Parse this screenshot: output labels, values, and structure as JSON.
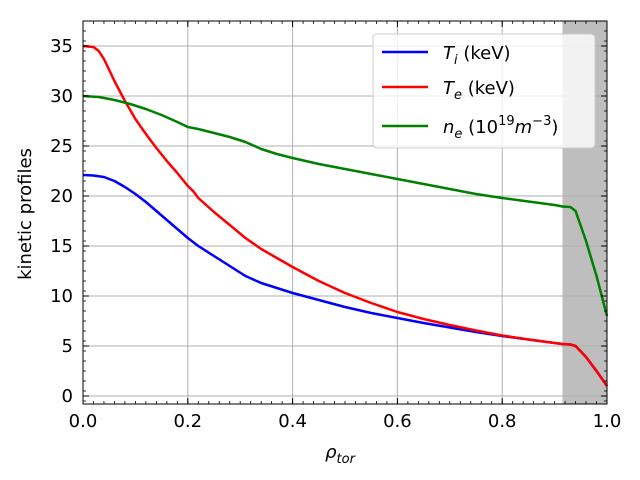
{
  "chart_data": {
    "type": "line",
    "title": "",
    "xlabel": "ρ",
    "xlabel_sub": "tor",
    "ylabel": "kinetic profiles",
    "xlim": [
      0.0,
      1.0
    ],
    "ylim": [
      -0.8,
      37.5
    ],
    "grid": true,
    "legend_position": "top-right",
    "x_ticks": [
      {
        "value": 0.0,
        "label": "0.0"
      },
      {
        "value": 0.2,
        "label": "0.2"
      },
      {
        "value": 0.4,
        "label": "0.4"
      },
      {
        "value": 0.6,
        "label": "0.6"
      },
      {
        "value": 0.8,
        "label": "0.8"
      },
      {
        "value": 1.0,
        "label": "1.0"
      }
    ],
    "y_ticks": [
      {
        "value": 0,
        "label": "0"
      },
      {
        "value": 5,
        "label": "5"
      },
      {
        "value": 10,
        "label": "10"
      },
      {
        "value": 15,
        "label": "15"
      },
      {
        "value": 20,
        "label": "20"
      },
      {
        "value": 25,
        "label": "25"
      },
      {
        "value": 30,
        "label": "30"
      },
      {
        "value": 35,
        "label": "35"
      }
    ],
    "shaded_region": {
      "x_start": 0.915,
      "x_end": 1.0,
      "color": "#bebebe"
    },
    "series": [
      {
        "name": "Ti (keV)",
        "legend_main": "T",
        "legend_sub": "i",
        "legend_suffix": " (keV)",
        "color": "#0000ff",
        "x": [
          0.0,
          0.02,
          0.04,
          0.06,
          0.08,
          0.1,
          0.12,
          0.14,
          0.16,
          0.18,
          0.2,
          0.22,
          0.25,
          0.28,
          0.31,
          0.34,
          0.37,
          0.4,
          0.45,
          0.5,
          0.55,
          0.6,
          0.65,
          0.7,
          0.75,
          0.8,
          0.85,
          0.9,
          0.915,
          0.93,
          0.94,
          0.96,
          0.98,
          1.0
        ],
        "values": [
          22.1,
          22.05,
          21.9,
          21.5,
          20.9,
          20.2,
          19.4,
          18.5,
          17.6,
          16.7,
          15.8,
          15.0,
          14.0,
          13.0,
          12.0,
          11.3,
          10.8,
          10.3,
          9.6,
          8.9,
          8.3,
          7.8,
          7.3,
          6.85,
          6.4,
          6.0,
          5.65,
          5.3,
          5.2,
          5.15,
          5.0,
          3.9,
          2.5,
          1.0
        ]
      },
      {
        "name": "Te (keV)",
        "legend_main": "T",
        "legend_sub": "e",
        "legend_suffix": " (keV)",
        "color": "#ff0000",
        "x": [
          0.0,
          0.02,
          0.03,
          0.04,
          0.05,
          0.06,
          0.08,
          0.1,
          0.12,
          0.14,
          0.16,
          0.18,
          0.2,
          0.21,
          0.22,
          0.25,
          0.28,
          0.31,
          0.34,
          0.37,
          0.4,
          0.45,
          0.5,
          0.55,
          0.6,
          0.65,
          0.7,
          0.75,
          0.8,
          0.85,
          0.9,
          0.915,
          0.93,
          0.94,
          0.96,
          0.98,
          1.0
        ],
        "values": [
          35.0,
          34.9,
          34.5,
          33.7,
          32.6,
          31.5,
          29.5,
          27.7,
          26.2,
          24.8,
          23.5,
          22.3,
          21.0,
          20.5,
          19.8,
          18.4,
          17.1,
          15.8,
          14.7,
          13.8,
          12.9,
          11.5,
          10.3,
          9.3,
          8.4,
          7.7,
          7.1,
          6.55,
          6.05,
          5.65,
          5.3,
          5.2,
          5.15,
          5.0,
          3.9,
          2.5,
          1.0
        ]
      },
      {
        "name": "ne (10^19 m^-3)",
        "legend_main": "n",
        "legend_sub": "e",
        "legend_suffix": "",
        "color": "#008000",
        "x": [
          0.0,
          0.03,
          0.06,
          0.09,
          0.12,
          0.15,
          0.18,
          0.2,
          0.22,
          0.25,
          0.28,
          0.31,
          0.34,
          0.37,
          0.4,
          0.45,
          0.5,
          0.55,
          0.6,
          0.65,
          0.7,
          0.75,
          0.8,
          0.85,
          0.9,
          0.915,
          0.93,
          0.94,
          0.96,
          0.98,
          1.0
        ],
        "values": [
          30.0,
          29.9,
          29.6,
          29.2,
          28.7,
          28.1,
          27.4,
          26.9,
          26.7,
          26.3,
          25.9,
          25.4,
          24.7,
          24.2,
          23.8,
          23.2,
          22.7,
          22.2,
          21.7,
          21.2,
          20.7,
          20.2,
          19.8,
          19.45,
          19.1,
          18.95,
          18.9,
          18.5,
          15.5,
          12.0,
          8.0
        ]
      }
    ]
  }
}
